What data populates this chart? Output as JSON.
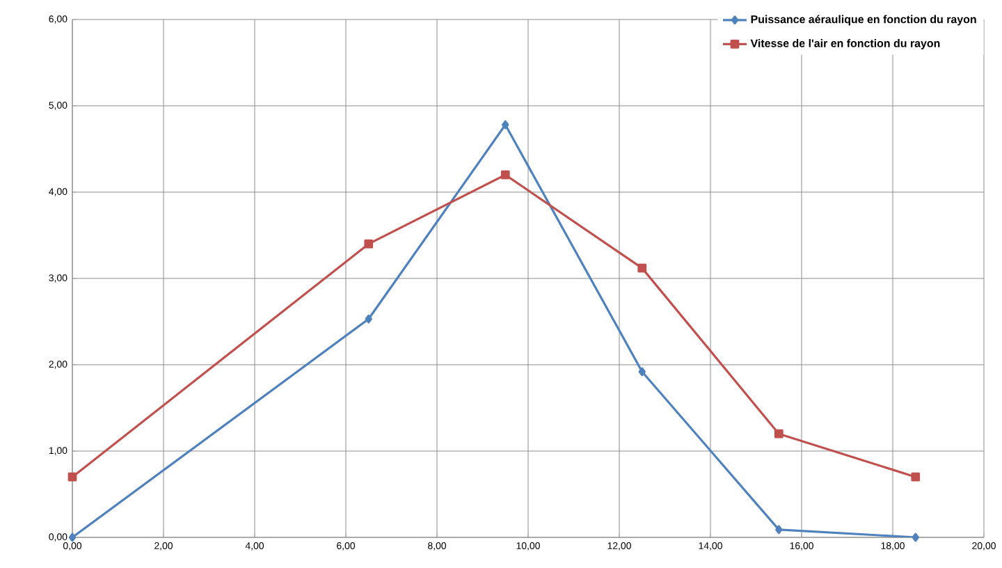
{
  "chart_data": {
    "type": "line",
    "x": [
      0,
      6.5,
      9.5,
      12.5,
      15.5,
      18.5
    ],
    "series": [
      {
        "name": "Puissance aéraulique en fonction du rayon",
        "color": "#4f81bd",
        "marker": "diamond",
        "values": [
          0,
          2.53,
          4.78,
          1.92,
          0.09,
          0.0
        ]
      },
      {
        "name": "Vitesse de l'air en fonction du rayon",
        "color": "#c0504d",
        "marker": "square",
        "values": [
          0.7,
          3.4,
          4.2,
          3.12,
          1.2,
          0.7
        ]
      }
    ],
    "xlim": [
      0,
      20
    ],
    "xticks": [
      {
        "value": 0,
        "label": "0,00"
      },
      {
        "value": 2,
        "label": "2,00"
      },
      {
        "value": 4,
        "label": "4,00"
      },
      {
        "value": 6,
        "label": "6,00"
      },
      {
        "value": 8,
        "label": "8,00"
      },
      {
        "value": 10,
        "label": "10,00"
      },
      {
        "value": 12,
        "label": "12,00"
      },
      {
        "value": 14,
        "label": "14,00"
      },
      {
        "value": 16,
        "label": "16,00"
      },
      {
        "value": 18,
        "label": "18,00"
      },
      {
        "value": 20,
        "label": "20,00"
      }
    ],
    "ylim": [
      0,
      6
    ],
    "yticks": [
      {
        "value": 0,
        "label": "0,00"
      },
      {
        "value": 1,
        "label": "1,00"
      },
      {
        "value": 2,
        "label": "2,00"
      },
      {
        "value": 3,
        "label": "3,00"
      },
      {
        "value": 4,
        "label": "4,00"
      },
      {
        "value": 5,
        "label": "5,00"
      },
      {
        "value": 6,
        "label": "6,00"
      }
    ],
    "grid": true,
    "legend": "top right",
    "line_style": "solid"
  }
}
